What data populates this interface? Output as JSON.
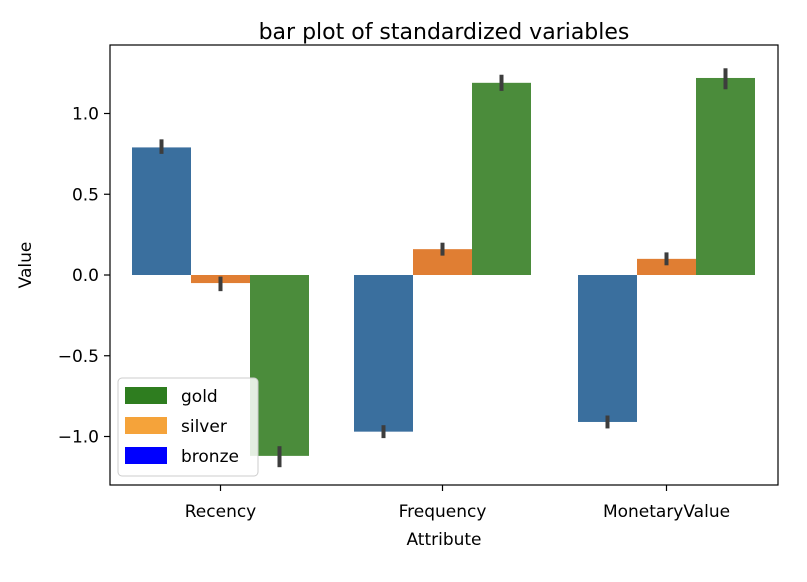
{
  "chart_data": {
    "type": "bar",
    "title": "bar plot of standardized variables",
    "xlabel": "Attribute",
    "ylabel": "Value",
    "categories": [
      "Recency",
      "Frequency",
      "MonetaryValue"
    ],
    "ylim": [
      -1.3,
      1.38
    ],
    "yticks": [
      -1.0,
      -0.5,
      0.0,
      0.5,
      1.0
    ],
    "ytick_labels": [
      "−1.0",
      "−0.5",
      "0.0",
      "0.5",
      "1.0"
    ],
    "grid": false,
    "series": [
      {
        "values": [
          0.79,
          -0.97,
          -0.91
        ],
        "err_low": [
          0.75,
          -1.01,
          -0.95
        ],
        "err_high": [
          0.84,
          -0.93,
          -0.87
        ],
        "color": "#3a6f9e"
      },
      {
        "values": [
          -0.05,
          0.16,
          0.1
        ],
        "err_low": [
          -0.1,
          0.12,
          0.06
        ],
        "err_high": [
          -0.01,
          0.2,
          0.14
        ],
        "color": "#e07e33"
      },
      {
        "values": [
          -1.12,
          1.19,
          1.22
        ],
        "err_low": [
          -1.19,
          1.14,
          1.15
        ],
        "err_high": [
          -1.06,
          1.24,
          1.28
        ],
        "color": "#4b8c3b"
      }
    ],
    "legend": {
      "placement": "lower-left",
      "entries": [
        {
          "label": "gold",
          "color": "#2e7d1f"
        },
        {
          "label": "silver",
          "color": "#f5a33a"
        },
        {
          "label": "bronze",
          "color": "#0000ff"
        }
      ]
    }
  }
}
